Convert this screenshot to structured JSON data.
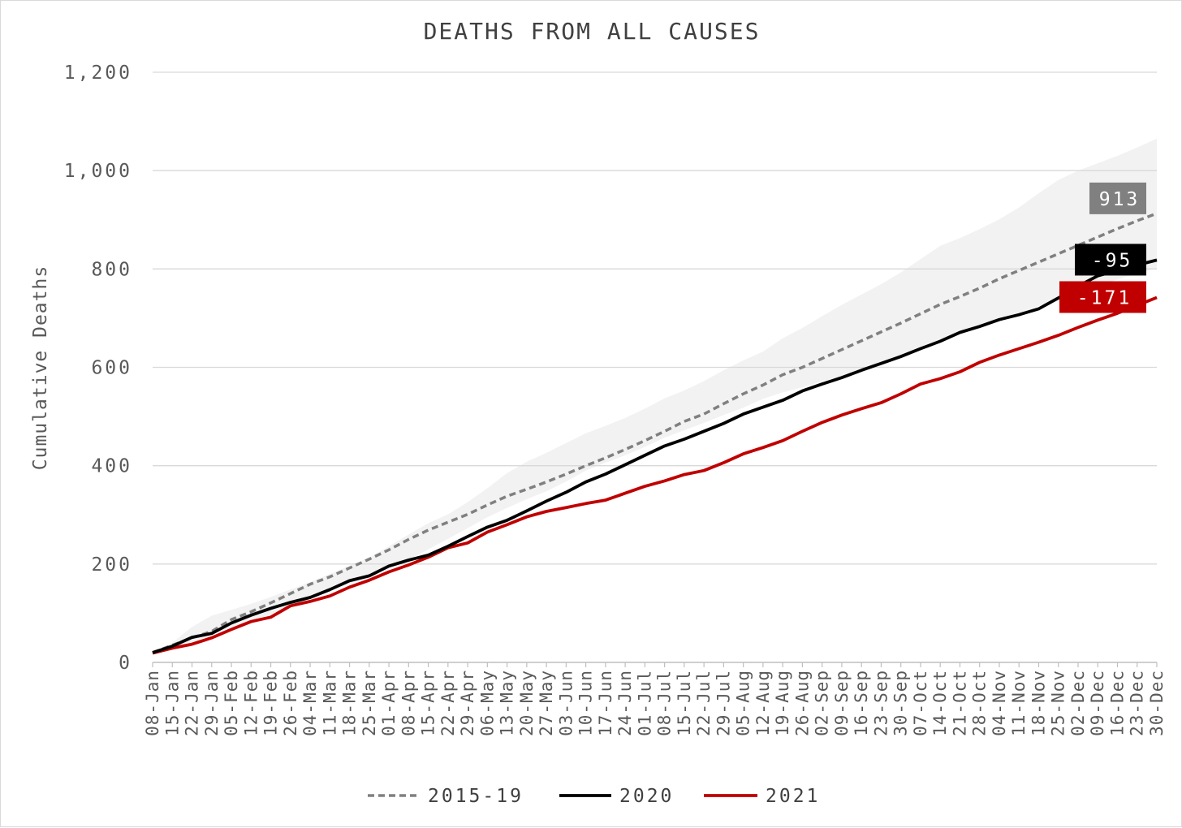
{
  "chart_data": {
    "type": "line",
    "title": "DEATHS FROM ALL CAUSES",
    "xlabel": "",
    "ylabel": "Cumulative Deaths",
    "ylim": [
      0,
      1200
    ],
    "yticks": [
      0,
      200,
      400,
      600,
      800,
      1000,
      1200
    ],
    "ytick_labels": [
      "0",
      "200",
      "400",
      "600",
      "800",
      "1,000",
      "1,200"
    ],
    "grid": true,
    "legend_position": "bottom",
    "categories": [
      "08-Jan",
      "15-Jan",
      "22-Jan",
      "29-Jan",
      "05-Feb",
      "12-Feb",
      "19-Feb",
      "26-Feb",
      "04-Mar",
      "11-Mar",
      "18-Mar",
      "25-Mar",
      "01-Apr",
      "08-Apr",
      "15-Apr",
      "22-Apr",
      "29-Apr",
      "06-May",
      "13-May",
      "20-May",
      "27-May",
      "03-Jun",
      "10-Jun",
      "17-Jun",
      "24-Jun",
      "01-Jul",
      "08-Jul",
      "15-Jul",
      "22-Jul",
      "29-Jul",
      "05-Aug",
      "12-Aug",
      "19-Aug",
      "26-Aug",
      "02-Sep",
      "09-Sep",
      "16-Sep",
      "23-Sep",
      "30-Sep",
      "07-Oct",
      "14-Oct",
      "21-Oct",
      "28-Oct",
      "04-Nov",
      "11-Nov",
      "18-Nov",
      "25-Nov",
      "02-Dec",
      "09-Dec",
      "16-Dec",
      "23-Dec",
      "30-Dec"
    ],
    "band": {
      "color": "#f2f2f2",
      "upper": [
        20,
        40,
        72,
        95,
        107,
        119,
        133,
        148,
        163,
        180,
        196,
        213,
        236,
        260,
        283,
        301,
        326,
        354,
        385,
        408,
        426,
        446,
        466,
        481,
        497,
        516,
        537,
        553,
        572,
        594,
        614,
        632,
        659,
        680,
        704,
        727,
        748,
        769,
        793,
        820,
        847,
        863,
        881,
        901,
        925,
        954,
        981,
        1000,
        1015,
        1030,
        1047,
        1065
      ],
      "lower": [
        18,
        25,
        38,
        58,
        72,
        84,
        98,
        113,
        129,
        144,
        160,
        174,
        191,
        209,
        230,
        251,
        273,
        295,
        314,
        332,
        348,
        368,
        390,
        406,
        421,
        438,
        457,
        472,
        487,
        503,
        518,
        536,
        549,
        559,
        572,
        581,
        594,
        607,
        623,
        638,
        651,
        668,
        685,
        697,
        709,
        725,
        735,
        753,
        765,
        779,
        791,
        801
      ]
    },
    "series": [
      {
        "name": "2015-19",
        "color": "#808080",
        "dash": true,
        "values": [
          20,
          35,
          50,
          63,
          87,
          103,
          121,
          140,
          159,
          174,
          192,
          210,
          229,
          250,
          269,
          285,
          301,
          320,
          338,
          352,
          367,
          383,
          400,
          416,
          433,
          451,
          470,
          490,
          505,
          526,
          546,
          564,
          585,
          600,
          618,
          636,
          654,
          672,
          690,
          709,
          728,
          744,
          761,
          780,
          797,
          814,
          831,
          848,
          865,
          882,
          898,
          913
        ]
      },
      {
        "name": "2020",
        "color": "#000000",
        "dash": false,
        "values": [
          20,
          33,
          51,
          59,
          80,
          96,
          110,
          122,
          132,
          148,
          166,
          176,
          196,
          208,
          218,
          236,
          256,
          275,
          289,
          308,
          328,
          346,
          367,
          383,
          402,
          421,
          440,
          454,
          470,
          486,
          505,
          519,
          533,
          552,
          566,
          579,
          594,
          608,
          622,
          638,
          653,
          671,
          683,
          697,
          707,
          719,
          741,
          765,
          786,
          797,
          808,
          818
        ]
      },
      {
        "name": "2021",
        "color": "#c00000",
        "dash": false,
        "values": [
          19,
          29,
          37,
          50,
          67,
          83,
          92,
          115,
          124,
          135,
          153,
          167,
          184,
          198,
          214,
          233,
          243,
          265,
          280,
          296,
          307,
          315,
          323,
          330,
          344,
          358,
          369,
          382,
          390,
          406,
          424,
          437,
          451,
          470,
          488,
          503,
          516,
          528,
          546,
          566,
          577,
          591,
          610,
          625,
          638,
          651,
          665,
          681,
          696,
          710,
          726,
          742
        ]
      }
    ],
    "annotations": [
      {
        "label": "913",
        "series": "2015-19",
        "color": "#808080"
      },
      {
        "label": "-95",
        "series": "2020",
        "color": "#000000"
      },
      {
        "label": "-171",
        "series": "2021",
        "color": "#c00000"
      }
    ]
  }
}
